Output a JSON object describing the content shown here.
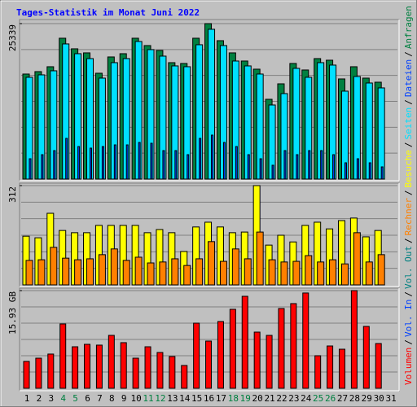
{
  "title": "Tages-Statistik im Monat Juni 2022",
  "legend_separator": "/",
  "chart_data": [
    {
      "type": "bar",
      "ylim": [
        0,
        25339
      ],
      "yticks": [
        25339
      ],
      "series": [
        {
          "name": "Anfragen",
          "color": "#008040",
          "values": [
            17118,
            17516,
            18312,
            22957,
            21232,
            20568,
            17250,
            19904,
            20435,
            22957,
            21762,
            20966,
            18975,
            18842,
            22957,
            25339,
            22558,
            20568,
            19240,
            17914,
            13003,
            15524,
            18842,
            17781,
            19638,
            19373,
            16321,
            18312,
            16454,
            15790,
            null
          ]
        },
        {
          "name": "Dateien",
          "color": "#0040ff",
          "values": [
            3317,
            3981,
            4644,
            6635,
            5308,
            5042,
            5308,
            5573,
            5573,
            5971,
            5839,
            4644,
            4644,
            3981,
            6635,
            7166,
            5971,
            5308,
            3981,
            3317,
            2256,
            4644,
            3981,
            4644,
            4644,
            3981,
            2654,
            3317,
            2654,
            1990,
            null
          ]
        },
        {
          "name": "Seiten",
          "color": "#00e0ff",
          "values": [
            16587,
            16985,
            17648,
            22027,
            20435,
            19638,
            16454,
            18975,
            19638,
            22425,
            21098,
            20037,
            18444,
            18312,
            21894,
            24414,
            21762,
            19240,
            18444,
            17118,
            12075,
            13932,
            18046,
            16587,
            18975,
            18577,
            14330,
            16720,
            15657,
            14861,
            null
          ]
        }
      ]
    },
    {
      "type": "bar",
      "ylim": [
        0,
        312
      ],
      "yticks": [
        312
      ],
      "series": [
        {
          "name": "Besuche",
          "color": "#ffff00",
          "values": [
            153,
            148,
            225,
            171,
            164,
            164,
            187,
            187,
            187,
            187,
            164,
            174,
            164,
            105,
            182,
            197,
            182,
            164,
            166,
            312,
            125,
            156,
            135,
            187,
            197,
            176,
            202,
            210,
            151,
            171,
            null
          ]
        },
        {
          "name": "Rechner",
          "color": "#ff8000",
          "values": [
            77,
            79,
            118,
            84,
            79,
            82,
            95,
            113,
            77,
            87,
            69,
            72,
            82,
            61,
            82,
            136,
            74,
            113,
            82,
            166,
            79,
            72,
            74,
            92,
            72,
            79,
            66,
            164,
            72,
            95,
            null
          ]
        }
      ]
    },
    {
      "type": "bar",
      "ylim": [
        0,
        15.93
      ],
      "yticks": [
        {
          "value": 15.93,
          "label": "15.93 GB"
        }
      ],
      "categories": [
        "1",
        "2",
        "3",
        "4",
        "5",
        "6",
        "7",
        "8",
        "9",
        "10",
        "11",
        "12",
        "13",
        "14",
        "15",
        "16",
        "17",
        "18",
        "19",
        "20",
        "21",
        "22",
        "23",
        "24",
        "25",
        "26",
        "27",
        "28",
        "29",
        "30",
        "31"
      ],
      "category_colors": [
        "#000000",
        "#000000",
        "#000000",
        "#008040",
        "#008040",
        "#000000",
        "#000000",
        "#000000",
        "#000000",
        "#000000",
        "#008040",
        "#008040",
        "#000000",
        "#000000",
        "#000000",
        "#000000",
        "#000000",
        "#008040",
        "#008040",
        "#000000",
        "#000000",
        "#000000",
        "#000000",
        "#000000",
        "#008040",
        "#008040",
        "#000000",
        "#000000",
        "#000000",
        "#000000",
        "#000000"
      ],
      "series": [
        {
          "name": "Volumen",
          "color": "#ff0000",
          "values": [
            4.38,
            4.91,
            5.58,
            10.49,
            6.77,
            7.17,
            7.04,
            8.63,
            7.44,
            4.91,
            6.77,
            5.84,
            5.18,
            3.72,
            10.62,
            7.7,
            10.89,
            12.88,
            15.0,
            9.16,
            8.63,
            13.01,
            13.81,
            15.54,
            5.31,
            6.9,
            6.37,
            15.93,
            10.09,
            7.3,
            null
          ]
        }
      ],
      "legend_only": [
        {
          "name": "Vol. In",
          "color": "#0040ff"
        },
        {
          "name": "Vol. Out",
          "color": "#008080"
        }
      ]
    }
  ]
}
